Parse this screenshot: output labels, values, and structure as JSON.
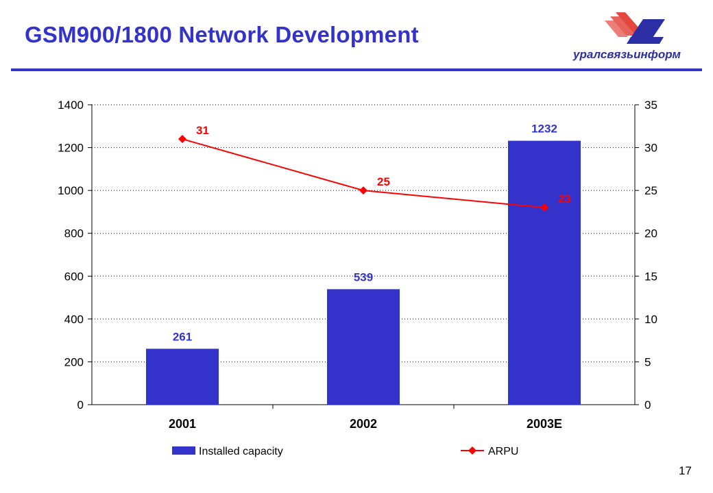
{
  "slide": {
    "title": "GSM900/1800 Network Development",
    "logo_text": "уралсвязьинформ",
    "page_number": "17"
  },
  "colors": {
    "title": "#3333cc",
    "bar": "#3333cc",
    "line": "#ff0000",
    "bar_label": "#3333cc",
    "line_label": "#ff0000",
    "logo_red": "#e4473f",
    "logo_blue": "#2b2fa3"
  },
  "chart_data": {
    "type": "bar",
    "categories": [
      "2001",
      "2002",
      "2003E"
    ],
    "series": [
      {
        "name": "Installed capacity",
        "type": "bar",
        "axis": "left",
        "values": [
          261,
          539,
          1232
        ],
        "labels": [
          "261",
          "539",
          "1232"
        ]
      },
      {
        "name": "ARPU",
        "type": "line",
        "axis": "right",
        "values": [
          31,
          25,
          23
        ],
        "labels": [
          "31",
          "25",
          "23"
        ]
      }
    ],
    "y_left": {
      "min": 0,
      "max": 1400,
      "step": 200,
      "ticks": [
        "0",
        "200",
        "400",
        "600",
        "800",
        "1000",
        "1200",
        "1400"
      ]
    },
    "y_right": {
      "min": 0,
      "max": 35,
      "step": 5,
      "ticks": [
        "0",
        "5",
        "10",
        "15",
        "20",
        "25",
        "30",
        "35"
      ]
    },
    "grid": "dotted horizontal",
    "legend": "bottom"
  }
}
